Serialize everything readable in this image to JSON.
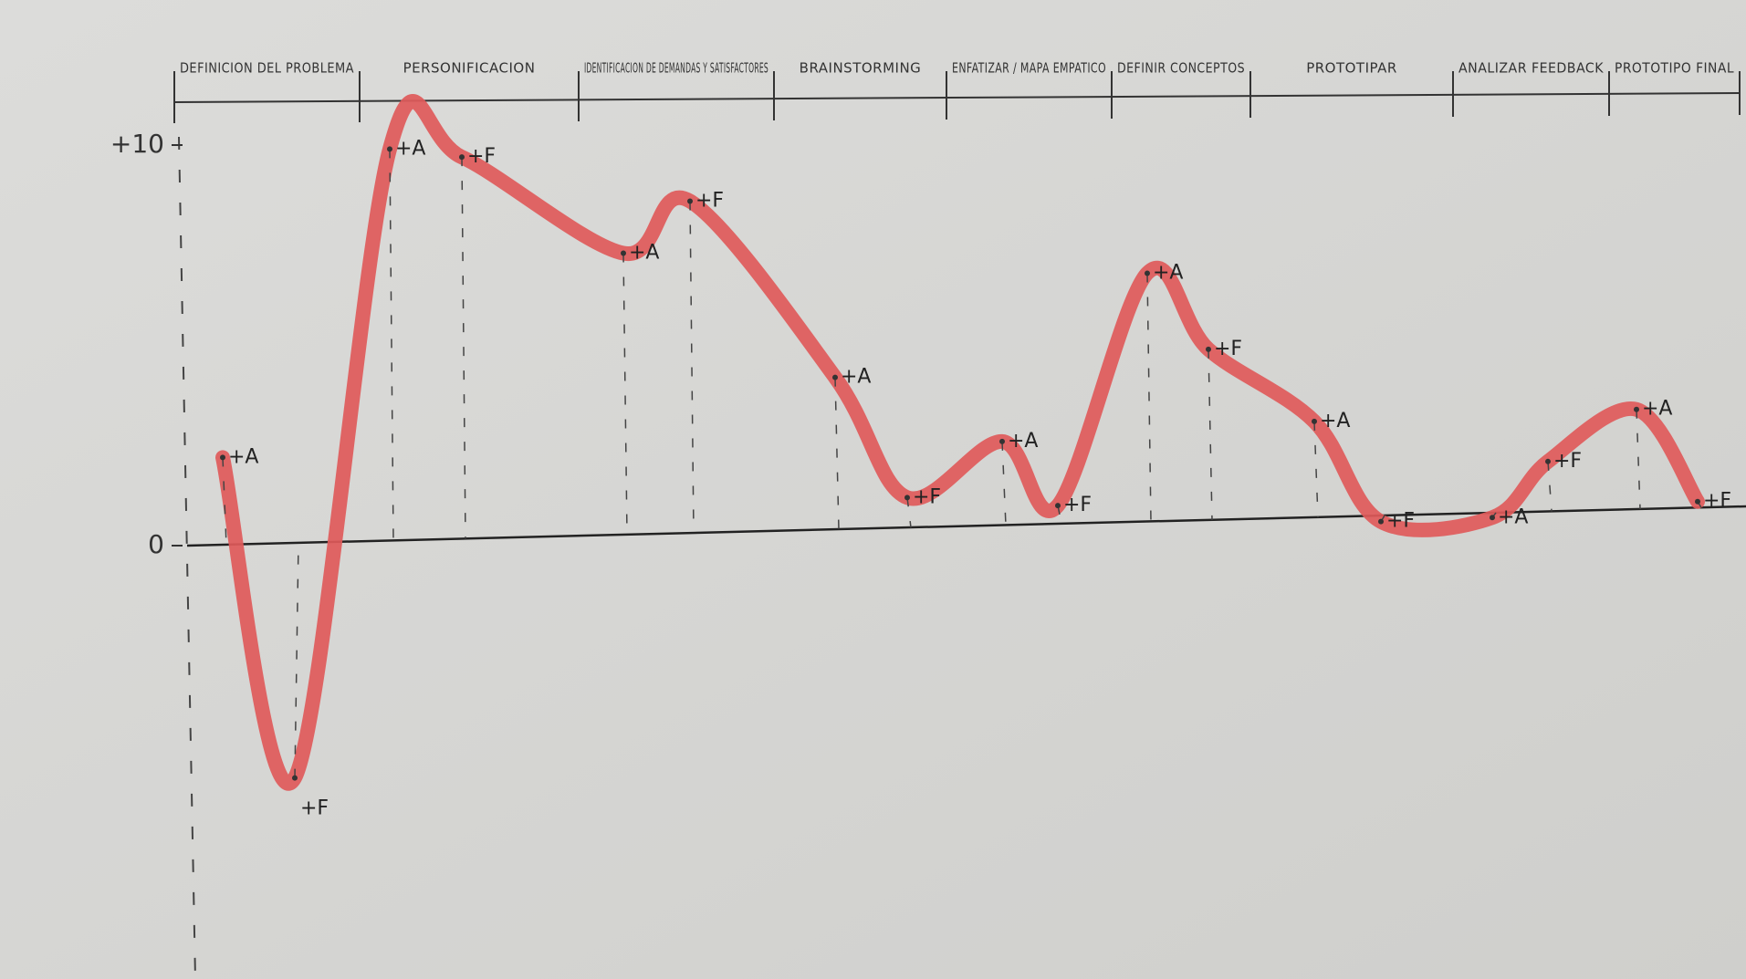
{
  "chart_data": {
    "type": "line",
    "phases": [
      "DEFINICION DEL PROBLEMA",
      "PERSONIFICACION",
      "IDENTIFICACION DE DEMANDAS Y SATISFACTORES",
      "BRAINSTORMING",
      "ENFATIZAR / MAPA EMPATICO",
      "DEFINIR CONCEPTOS",
      "PROTOTIPAR",
      "ANALIZAR FEEDBACK",
      "PROTOTIPO FINAL"
    ],
    "categories": [
      "+A",
      "+F",
      "+A",
      "+F",
      "+A",
      "+F",
      "+A",
      "+F",
      "+A",
      "+F",
      "+A",
      "+F",
      "+A",
      "+F",
      "+A",
      "+F",
      "+A",
      "+F"
    ],
    "values": [
      2.2,
      -5.8,
      9.9,
      9.7,
      7.3,
      8.6,
      4.2,
      1.2,
      2.6,
      1.0,
      6.8,
      4.9,
      3.1,
      0.6,
      0.7,
      2.1,
      3.4,
      1.1
    ],
    "color": "#e05a5a",
    "ylim": [
      -10,
      10
    ],
    "yticks": [
      0,
      {
        "value": 10,
        "label": "+10"
      }
    ]
  }
}
